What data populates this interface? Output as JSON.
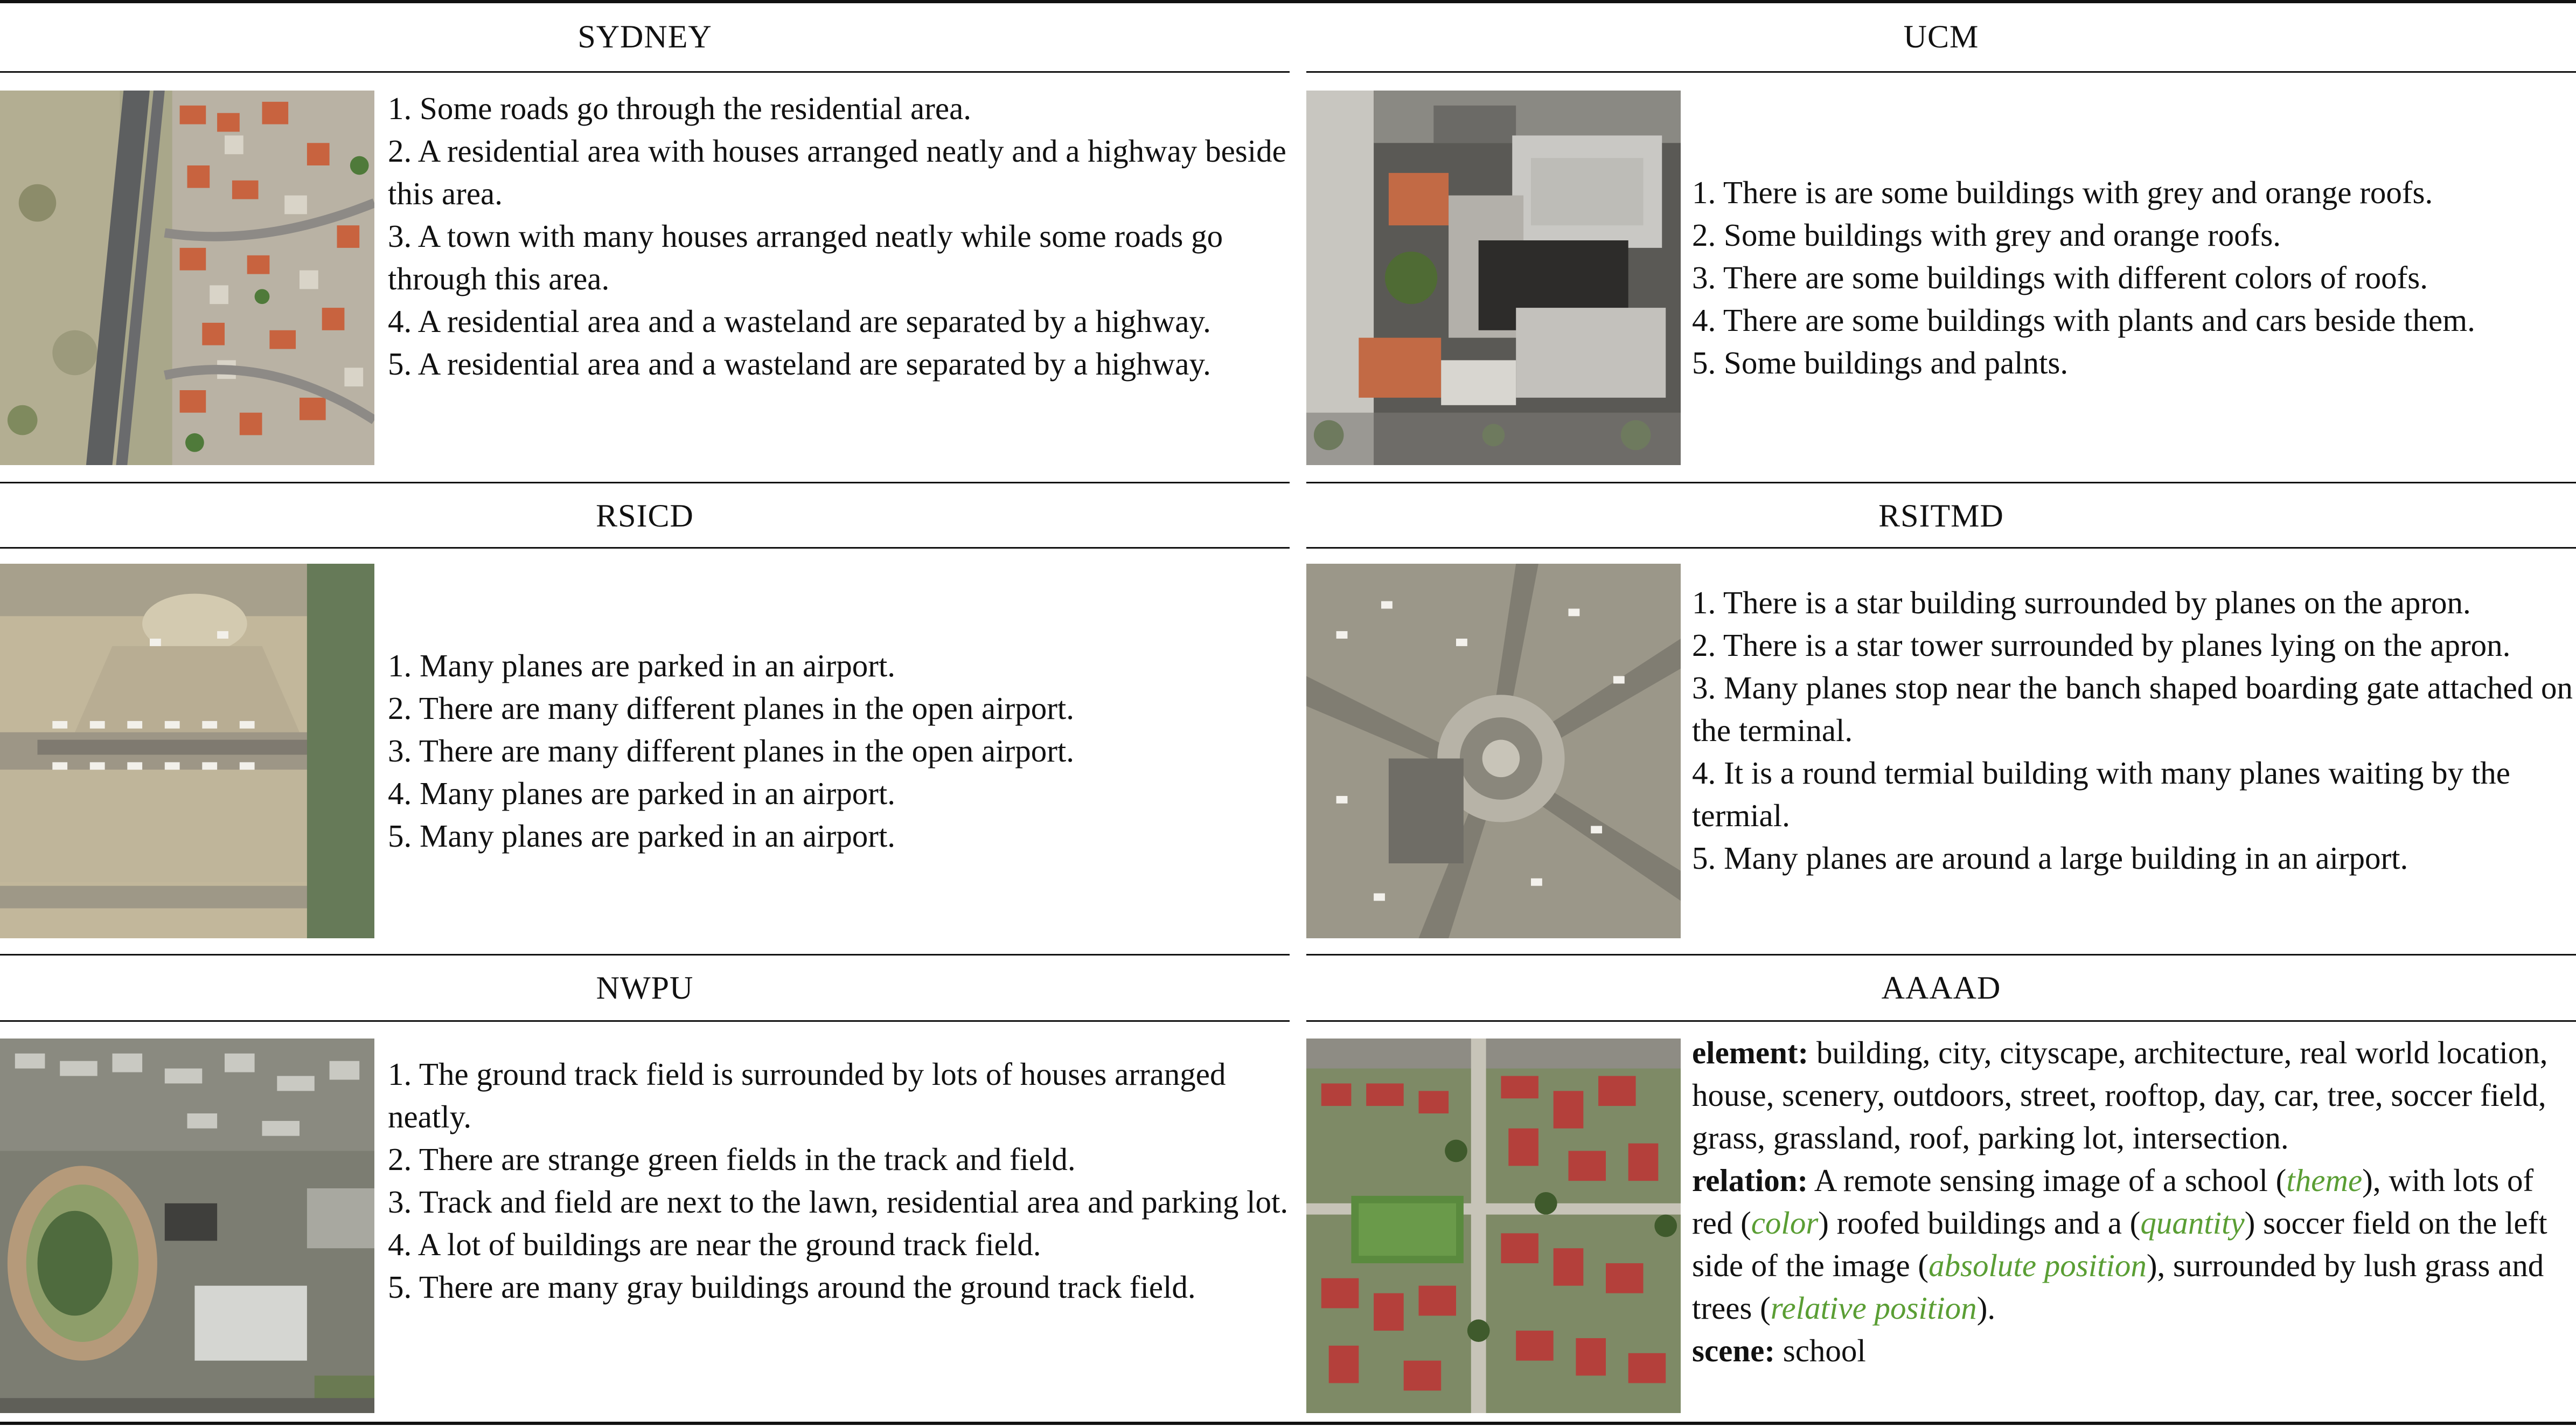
{
  "panels": {
    "sydney": {
      "title": "SYDNEY",
      "captions": [
        "1. Some roads go through the residential area.",
        "2. A residential area with houses arranged neatly and a highway beside this area.",
        "3. A town with many houses arranged neatly while some roads go through this area.",
        "4. A residential area and a wasteland are separated by a highway.",
        "5. A residential area and a wasteland are separated by a highway."
      ]
    },
    "ucm": {
      "title": "UCM",
      "captions": [
        "1. There is are some buildings with grey and orange roofs.",
        "2. Some buildings with grey and orange roofs.",
        "3. There are some buildings with different colors of roofs.",
        "4. There are some buildings with plants and cars beside them.",
        "5. Some buildings and palnts."
      ]
    },
    "rsicd": {
      "title": "RSICD",
      "captions": [
        "1. Many planes are parked in an airport.",
        "2. There are many different planes in the open airport.",
        "3. There are many different planes in the open airport.",
        "4. Many planes are parked in an airport.",
        "5. Many planes are parked in an airport."
      ]
    },
    "rsitmd": {
      "title": "RSITMD",
      "captions": [
        "1. There is a star building surrounded by planes on the apron.",
        "2. There is a star tower surrounded by planes lying on the apron.",
        "3. Many planes stop near the banch shaped boarding gate attached on the terminal.",
        "4. It is a round termial building with many planes waiting by the termial.",
        "5. Many planes are around a large building in an airport."
      ]
    },
    "nwpu": {
      "title": "NWPU",
      "captions": [
        "1. The ground track field is surrounded by lots of houses arranged neatly.",
        "2. There are strange green fields in the track and field.",
        "3. Track and field are next to the lawn, residential area and parking lot.",
        "4. A lot of buildings are near the ground track field.",
        "5. There are many gray buildings around the ground track field."
      ]
    },
    "aaaad": {
      "title": "AAAAD",
      "element_label": "element:",
      "element_text": "building, city, cityscape, architecture, real world location, house, scenery, outdoors, street, rooftop, day, car, tree, soccer field, grass, grassland, roof, parking lot, intersection.",
      "relation_label": "relation:",
      "relation_parts": [
        "A remote sensing image of a school (",
        "), with lots of red (",
        ") roofed buildings and a (",
        ") soccer field on the left side of the image (",
        "), surrounded by lush grass and trees (",
        ")."
      ],
      "relation_tags": [
        "theme",
        "color",
        "quantity",
        "absolute position",
        "relative position"
      ],
      "scene_label": "scene:",
      "scene_text": "school"
    }
  },
  "colors": {
    "tag_green": "#5a9e34",
    "rule": "#111111"
  }
}
